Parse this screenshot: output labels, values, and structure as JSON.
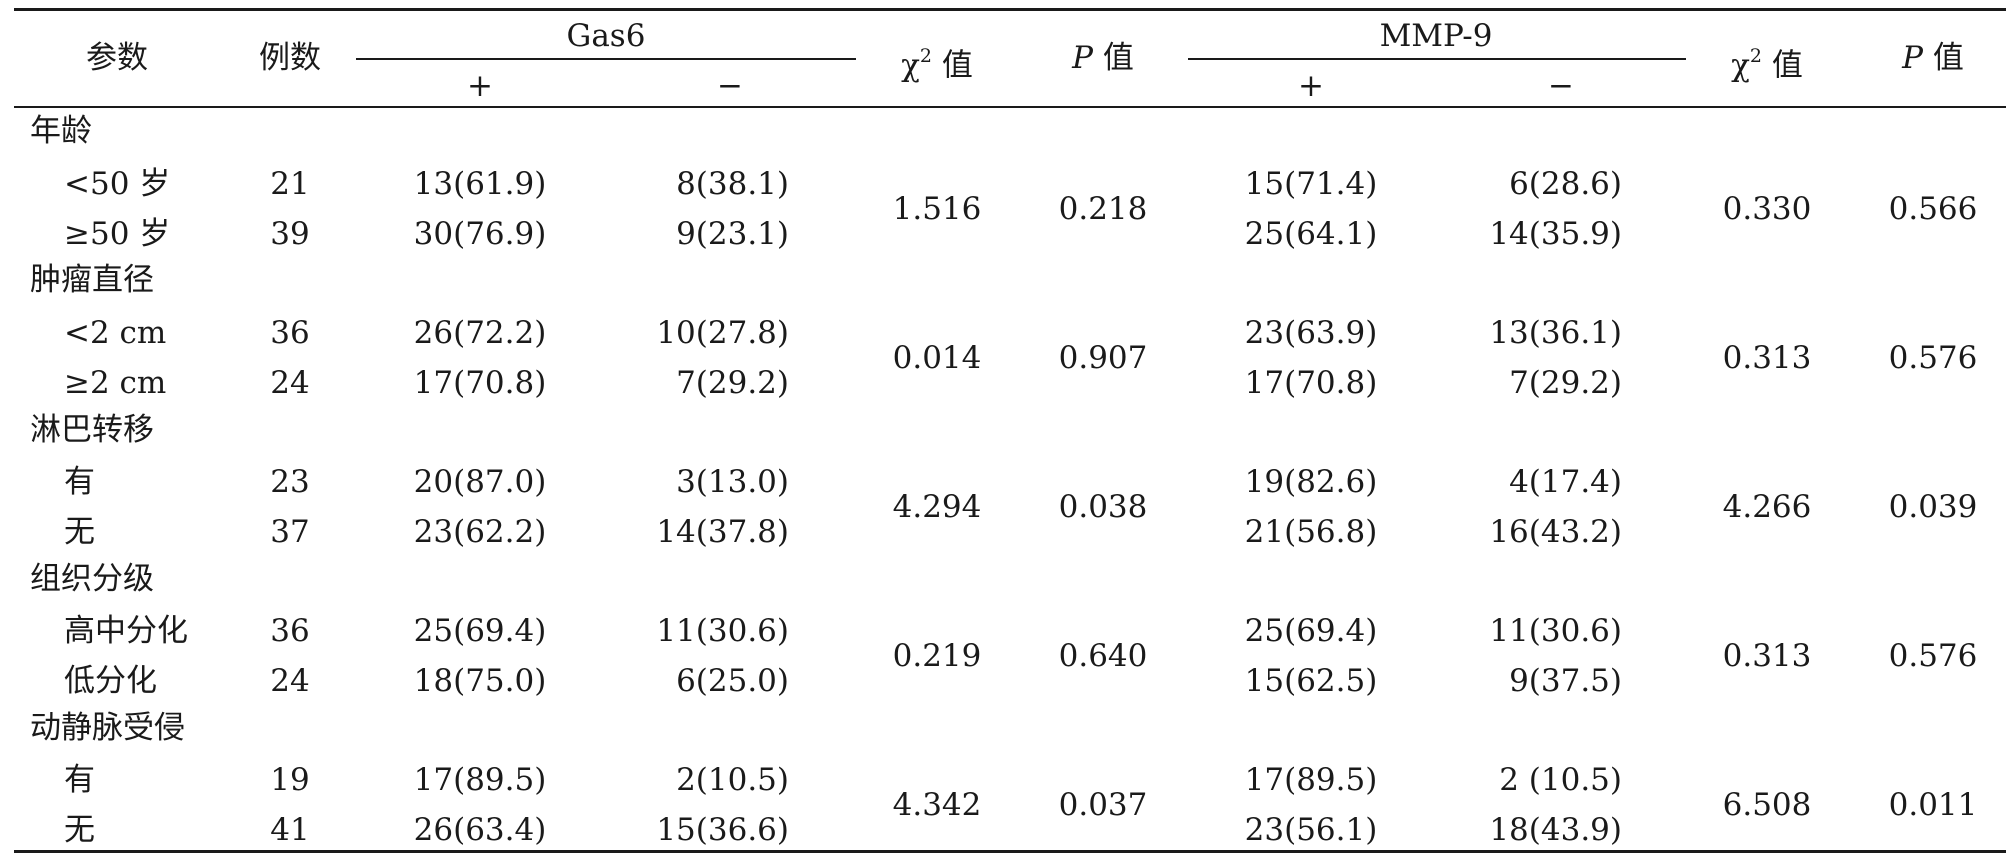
{
  "header": {
    "param": "参数",
    "cases": "例数",
    "gas6": "Gas6",
    "mmp9": "MMP-9",
    "plus": "+",
    "minus": "−",
    "chi_prefix": "χ",
    "chi_sup": "2",
    "chi_suffix": " 值",
    "p_letter": "P",
    "p_suffix": " 值"
  },
  "groups": [
    {
      "name": "年龄",
      "rows": [
        {
          "label": "<50 岁",
          "n": "21",
          "gas_pos": "13(61.9)",
          "gas_neg": "8(38.1)",
          "mmp_pos": "15(71.4)",
          "mmp_neg": "6(28.6)"
        },
        {
          "label": "≥50 岁",
          "n": "39",
          "gas_pos": "30(76.9)",
          "gas_neg": "9(23.1)",
          "mmp_pos": "25(64.1)",
          "mmp_neg": "14(35.9)"
        }
      ],
      "gas_chi": "1.516",
      "gas_p": "0.218",
      "mmp_chi": "0.330",
      "mmp_p": "0.566"
    },
    {
      "name": "肿瘤直径",
      "rows": [
        {
          "label": "<2 cm",
          "n": "36",
          "gas_pos": "26(72.2)",
          "gas_neg": "10(27.8)",
          "mmp_pos": "23(63.9)",
          "mmp_neg": "13(36.1)"
        },
        {
          "label": "≥2 cm",
          "n": "24",
          "gas_pos": "17(70.8)",
          "gas_neg": "7(29.2)",
          "mmp_pos": "17(70.8)",
          "mmp_neg": "7(29.2)"
        }
      ],
      "gas_chi": "0.014",
      "gas_p": "0.907",
      "mmp_chi": "0.313",
      "mmp_p": "0.576"
    },
    {
      "name": "淋巴转移",
      "rows": [
        {
          "label": "有",
          "n": "23",
          "gas_pos": "20(87.0)",
          "gas_neg": "3(13.0)",
          "mmp_pos": "19(82.6)",
          "mmp_neg": "4(17.4)"
        },
        {
          "label": "无",
          "n": "37",
          "gas_pos": "23(62.2)",
          "gas_neg": "14(37.8)",
          "mmp_pos": "21(56.8)",
          "mmp_neg": "16(43.2)"
        }
      ],
      "gas_chi": "4.294",
      "gas_p": "0.038",
      "mmp_chi": "4.266",
      "mmp_p": "0.039"
    },
    {
      "name": "组织分级",
      "rows": [
        {
          "label": "高中分化",
          "n": "36",
          "gas_pos": "25(69.4)",
          "gas_neg": "11(30.6)",
          "mmp_pos": "25(69.4)",
          "mmp_neg": "11(30.6)"
        },
        {
          "label": "低分化",
          "n": "24",
          "gas_pos": "18(75.0)",
          "gas_neg": "6(25.0)",
          "mmp_pos": "15(62.5)",
          "mmp_neg": "9(37.5)"
        }
      ],
      "gas_chi": "0.219",
      "gas_p": "0.640",
      "mmp_chi": "0.313",
      "mmp_p": "0.576"
    },
    {
      "name": "动静脉受侵",
      "rows": [
        {
          "label": "有",
          "n": "19",
          "gas_pos": "17(89.5)",
          "gas_neg": "2(10.5)",
          "mmp_pos": "17(89.5)",
          "mmp_neg": "2 (10.5)"
        },
        {
          "label": "无",
          "n": "41",
          "gas_pos": "26(63.4)",
          "gas_neg": "15(36.6)",
          "mmp_pos": "23(56.1)",
          "mmp_neg": "18(43.9)"
        }
      ],
      "gas_chi": "4.342",
      "gas_p": "0.037",
      "mmp_chi": "6.508",
      "mmp_p": "0.011"
    }
  ]
}
